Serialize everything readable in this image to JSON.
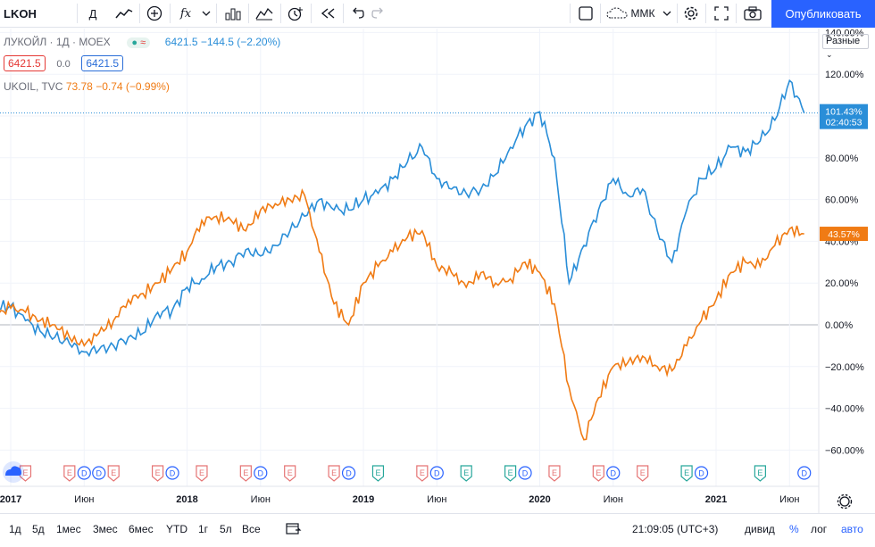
{
  "toolbar": {
    "symbol": "LKOH",
    "interval": "Д",
    "indicators_label": "fx",
    "layout_name": "ММК",
    "publish_label": "Опубликовать"
  },
  "legend": {
    "main_title": "ЛУКОЙЛ · 1Д · MOEX",
    "main_badge": "≈",
    "main_price": "6421.5",
    "main_change": "−144.5 (−2.20%)",
    "pill_bid": "6421.5",
    "pill_spread": "0.0",
    "pill_ask": "6421.5",
    "compare_name": "UKOIL, TVC",
    "compare_price": "73.78",
    "compare_change": "−0.74 (−0.99%)"
  },
  "scale_dropdown": "Разные",
  "price_axis": {
    "labels": [
      "140.00%",
      "120.00%",
      "100.00%",
      "80.00%",
      "60.00%",
      "40.00%",
      "20.00%",
      "0.00%",
      "−20.00%",
      "−40.00%",
      "−60.00%"
    ],
    "blue_tag": "101.43%",
    "blue_tag_time": "02:40:53",
    "orange_tag": "43.57%"
  },
  "time_axis": {
    "labels": [
      "2017",
      "Июн",
      "2018",
      "Июн",
      "2019",
      "Июн",
      "2020",
      "Июн",
      "2021",
      "Июн"
    ]
  },
  "colors": {
    "lkoh": "#2a8ed8",
    "ukoil": "#f07b14",
    "earnings_red": "#e57373",
    "earnings_green": "#26a69a",
    "dividend_blue": "#2962ff",
    "publish": "#2962ff"
  },
  "events": {
    "markers": [
      {
        "type": "E",
        "color": "red",
        "date": "2017-02"
      },
      {
        "type": "E",
        "color": "red",
        "date": "2017-05"
      },
      {
        "type": "D",
        "color": "blue",
        "date": "2017-06"
      },
      {
        "type": "D",
        "color": "blue",
        "date": "2017-07"
      },
      {
        "type": "E",
        "color": "red",
        "date": "2017-08"
      },
      {
        "type": "E",
        "color": "red",
        "date": "2017-11"
      },
      {
        "type": "D",
        "color": "blue",
        "date": "2017-12"
      },
      {
        "type": "E",
        "color": "red",
        "date": "2018-02"
      },
      {
        "type": "E",
        "color": "red",
        "date": "2018-05"
      },
      {
        "type": "D",
        "color": "blue",
        "date": "2018-06"
      },
      {
        "type": "E",
        "color": "red",
        "date": "2018-08"
      },
      {
        "type": "E",
        "color": "red",
        "date": "2018-11"
      },
      {
        "type": "D",
        "color": "blue",
        "date": "2018-12"
      },
      {
        "type": "E",
        "color": "green",
        "date": "2019-02"
      },
      {
        "type": "E",
        "color": "red",
        "date": "2019-05"
      },
      {
        "type": "D",
        "color": "blue",
        "date": "2019-06"
      },
      {
        "type": "E",
        "color": "green",
        "date": "2019-08"
      },
      {
        "type": "E",
        "color": "green",
        "date": "2019-11"
      },
      {
        "type": "D",
        "color": "blue",
        "date": "2019-12"
      },
      {
        "type": "E",
        "color": "red",
        "date": "2020-02"
      },
      {
        "type": "E",
        "color": "red",
        "date": "2020-05"
      },
      {
        "type": "D",
        "color": "blue",
        "date": "2020-06"
      },
      {
        "type": "E",
        "color": "red",
        "date": "2020-08"
      },
      {
        "type": "E",
        "color": "green",
        "date": "2020-11"
      },
      {
        "type": "D",
        "color": "blue",
        "date": "2020-12"
      },
      {
        "type": "E",
        "color": "green",
        "date": "2021-04"
      },
      {
        "type": "D",
        "color": "blue",
        "date": "2021-07"
      }
    ]
  },
  "chart_data": {
    "type": "line",
    "x_start": "2016-12",
    "x_end": "2021-07",
    "ylim": [
      -65,
      143
    ],
    "y_unit": "%",
    "grid": true,
    "series": [
      {
        "name": "ЛУКОЙЛ · 1Д · MOEX",
        "color": "#2a8ed8",
        "points": [
          [
            "2016-12",
            8
          ],
          [
            "2017-01",
            9
          ],
          [
            "2017-02",
            2
          ],
          [
            "2017-03",
            -3
          ],
          [
            "2017-04",
            -6
          ],
          [
            "2017-05",
            -9
          ],
          [
            "2017-06",
            -13
          ],
          [
            "2017-07",
            -12
          ],
          [
            "2017-08",
            -10
          ],
          [
            "2017-09",
            -6
          ],
          [
            "2017-10",
            -4
          ],
          [
            "2017-11",
            6
          ],
          [
            "2017-12",
            7
          ],
          [
            "2018-01",
            18
          ],
          [
            "2018-02",
            22
          ],
          [
            "2018-03",
            28
          ],
          [
            "2018-04",
            30
          ],
          [
            "2018-05",
            36
          ],
          [
            "2018-06",
            33
          ],
          [
            "2018-07",
            38
          ],
          [
            "2018-08",
            45
          ],
          [
            "2018-09",
            52
          ],
          [
            "2018-10",
            60
          ],
          [
            "2018-11",
            55
          ],
          [
            "2018-12",
            55
          ],
          [
            "2019-01",
            60
          ],
          [
            "2019-02",
            63
          ],
          [
            "2019-03",
            70
          ],
          [
            "2019-04",
            78
          ],
          [
            "2019-05",
            85
          ],
          [
            "2019-06",
            70
          ],
          [
            "2019-07",
            65
          ],
          [
            "2019-08",
            63
          ],
          [
            "2019-09",
            65
          ],
          [
            "2019-10",
            72
          ],
          [
            "2019-11",
            85
          ],
          [
            "2019-12",
            95
          ],
          [
            "2020-01",
            102
          ],
          [
            "2020-02",
            80
          ],
          [
            "2020-03",
            20
          ],
          [
            "2020-04",
            38
          ],
          [
            "2020-05",
            55
          ],
          [
            "2020-06",
            70
          ],
          [
            "2020-07",
            62
          ],
          [
            "2020-08",
            65
          ],
          [
            "2020-09",
            45
          ],
          [
            "2020-10",
            30
          ],
          [
            "2020-11",
            55
          ],
          [
            "2020-12",
            70
          ],
          [
            "2021-01",
            75
          ],
          [
            "2021-02",
            85
          ],
          [
            "2021-03",
            83
          ],
          [
            "2021-04",
            88
          ],
          [
            "2021-05",
            98
          ],
          [
            "2021-06",
            117
          ],
          [
            "2021-07",
            101.43
          ]
        ]
      },
      {
        "name": "UKOIL, TVC",
        "color": "#f07b14",
        "points": [
          [
            "2016-12",
            5
          ],
          [
            "2017-01",
            8
          ],
          [
            "2017-02",
            6
          ],
          [
            "2017-03",
            2
          ],
          [
            "2017-04",
            0
          ],
          [
            "2017-05",
            -6
          ],
          [
            "2017-06",
            -10
          ],
          [
            "2017-07",
            -4
          ],
          [
            "2017-08",
            2
          ],
          [
            "2017-09",
            12
          ],
          [
            "2017-10",
            15
          ],
          [
            "2017-11",
            20
          ],
          [
            "2017-12",
            27
          ],
          [
            "2018-01",
            35
          ],
          [
            "2018-02",
            50
          ],
          [
            "2018-03",
            52
          ],
          [
            "2018-04",
            50
          ],
          [
            "2018-05",
            45
          ],
          [
            "2018-06",
            55
          ],
          [
            "2018-07",
            58
          ],
          [
            "2018-08",
            60
          ],
          [
            "2018-09",
            62
          ],
          [
            "2018-10",
            35
          ],
          [
            "2018-11",
            10
          ],
          [
            "2018-12",
            0
          ],
          [
            "2019-01",
            20
          ],
          [
            "2019-02",
            28
          ],
          [
            "2019-03",
            35
          ],
          [
            "2019-04",
            42
          ],
          [
            "2019-05",
            45
          ],
          [
            "2019-06",
            28
          ],
          [
            "2019-07",
            25
          ],
          [
            "2019-08",
            18
          ],
          [
            "2019-09",
            25
          ],
          [
            "2019-10",
            20
          ],
          [
            "2019-11",
            22
          ],
          [
            "2019-12",
            30
          ],
          [
            "2020-01",
            25
          ],
          [
            "2020-02",
            10
          ],
          [
            "2020-03",
            -30
          ],
          [
            "2020-04",
            -55
          ],
          [
            "2020-05",
            -35
          ],
          [
            "2020-06",
            -20
          ],
          [
            "2020-07",
            -18
          ],
          [
            "2020-08",
            -15
          ],
          [
            "2020-09",
            -20
          ],
          [
            "2020-10",
            -22
          ],
          [
            "2020-11",
            -10
          ],
          [
            "2020-12",
            2
          ],
          [
            "2021-01",
            12
          ],
          [
            "2021-02",
            25
          ],
          [
            "2021-03",
            30
          ],
          [
            "2021-04",
            28
          ],
          [
            "2021-05",
            38
          ],
          [
            "2021-06",
            46
          ],
          [
            "2021-07",
            43.57
          ]
        ]
      }
    ]
  },
  "bottombar": {
    "ranges": [
      "1д",
      "5д",
      "1мес",
      "3мес",
      "6мес",
      "YTD",
      "1г",
      "5л",
      "Все"
    ],
    "clock": "21:09:05 (UTC+3)",
    "div_label": "дивид",
    "pct_label": "%",
    "log_label": "лог",
    "auto_label": "авто"
  }
}
